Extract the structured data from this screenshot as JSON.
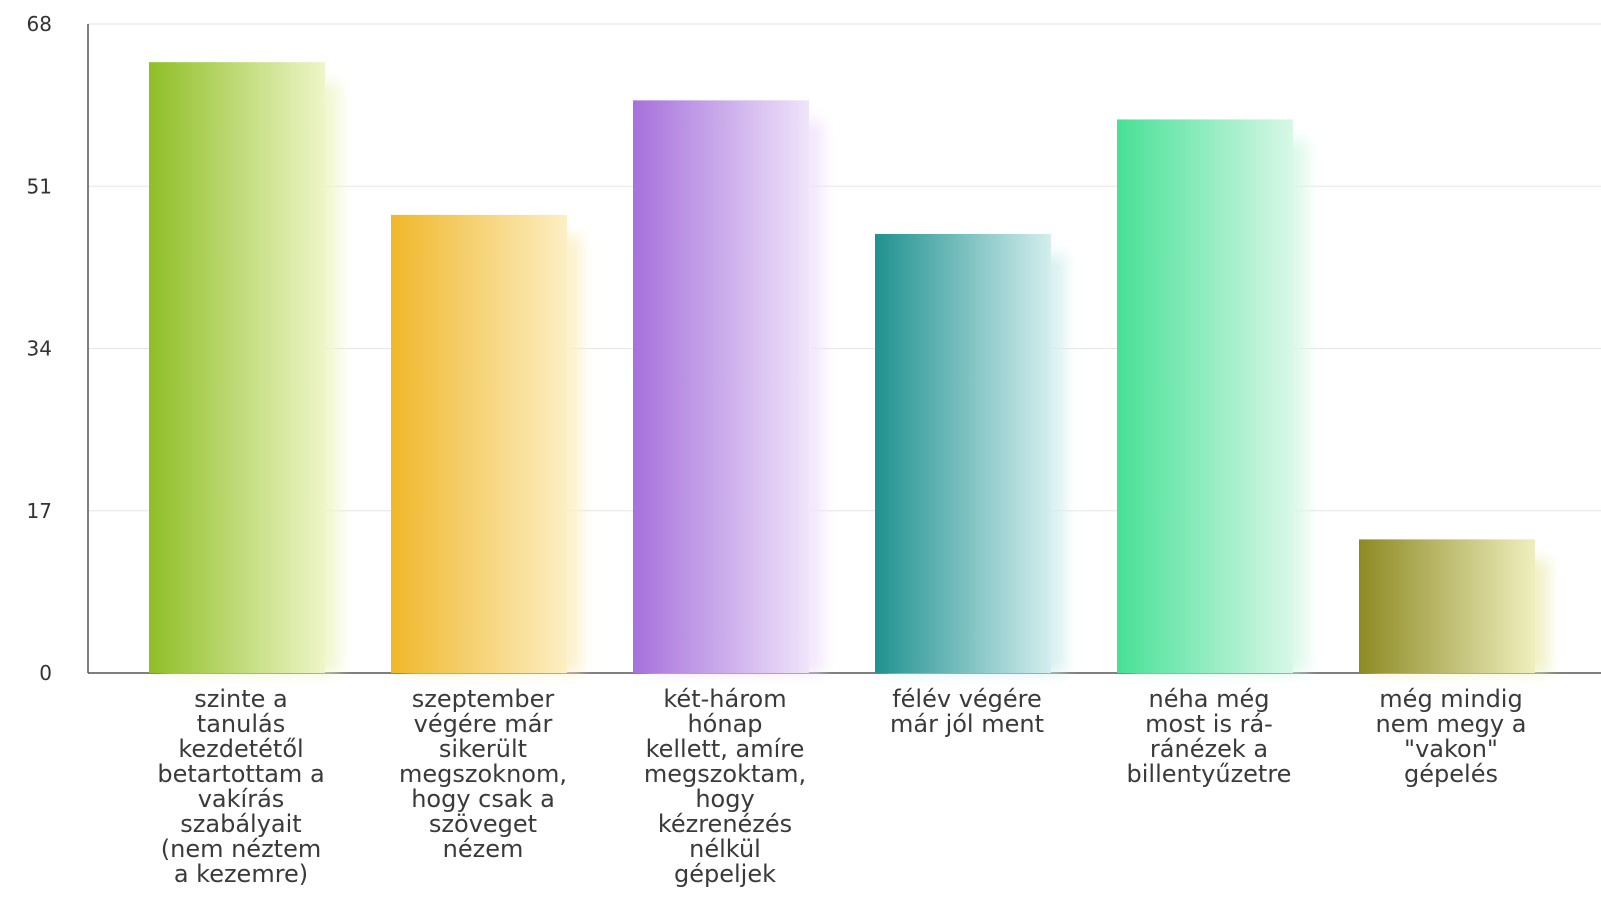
{
  "chart_data": {
    "type": "bar",
    "title": "",
    "xlabel": "",
    "ylabel": "",
    "ylim": [
      0,
      68
    ],
    "yticks": [
      0,
      17,
      34,
      51,
      68
    ],
    "grid": true,
    "categories": [
      [
        "szinte a",
        "tanulás",
        "kezdetétől",
        "betartottam a",
        "vakírás",
        "szabályait",
        "(nem néztem",
        "a kezemre)"
      ],
      [
        "szeptember",
        "végére már",
        "sikerült",
        "megszoknom,",
        "hogy csak a",
        "szöveget",
        "nézem"
      ],
      [
        "két-három",
        "hónap",
        "kellett, amíre",
        "megszoktam,",
        "hogy",
        "kézrenézés",
        "nélkül",
        "gépeljek"
      ],
      [
        "félév végére",
        "már jól ment"
      ],
      [
        "néha még",
        "most is rá-",
        "ránézek a",
        "billentyűzetre"
      ],
      [
        "még mindig",
        "nem megy a",
        "\"vakon\"",
        "gépelés"
      ]
    ],
    "values": [
      64,
      48,
      60,
      46,
      58,
      14
    ],
    "colors": [
      [
        "#8fbe26",
        "#eef6c8"
      ],
      [
        "#f0b72a",
        "#fcefc4"
      ],
      [
        "#a671dc",
        "#efe4fa"
      ],
      [
        "#1f918f",
        "#d4eeee"
      ],
      [
        "#48e096",
        "#d8f8e8"
      ],
      [
        "#8d8a24",
        "#efefbe"
      ]
    ]
  }
}
